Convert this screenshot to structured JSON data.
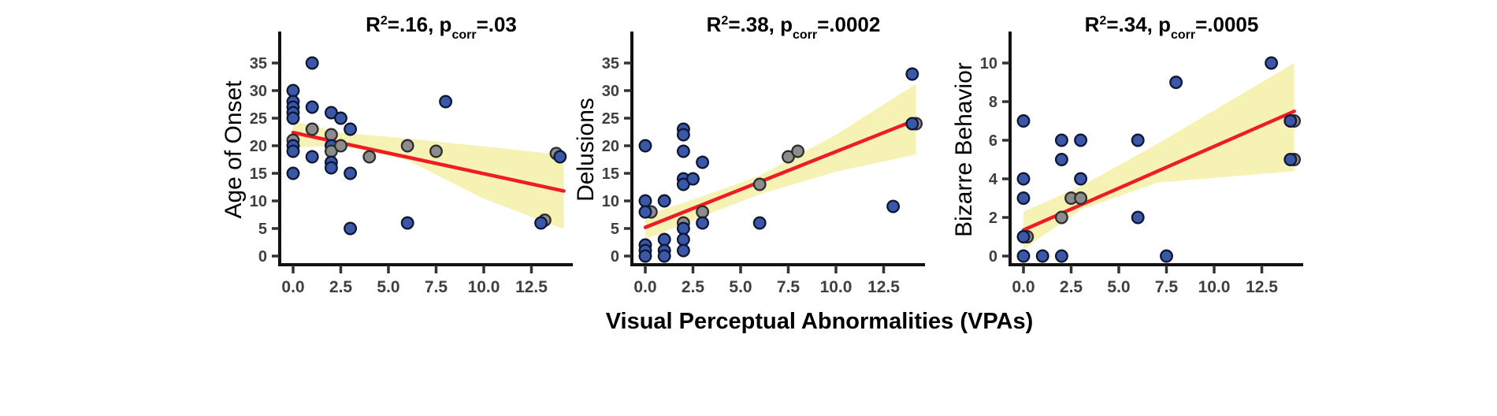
{
  "figure": {
    "x_axis_title": "Visual Perceptual Abnormalities (VPAs)",
    "colors": {
      "point_blue": "#3b57a8",
      "point_blue_stroke": "#0e1733",
      "point_gray": "#8c8c8c",
      "point_gray_stroke": "#2e2e2e",
      "regression_red": "#ee1c25",
      "ci_band_yellow": "#f6f2b4",
      "axis": "#111111",
      "tick_label": "#3f3f3f",
      "title_text": "#000000"
    }
  },
  "chart_data": [
    {
      "type": "scatter",
      "title": {
        "base": "R",
        "sup": "2",
        "mid": "=.16, p",
        "sub": "corr",
        "tail": "=.03"
      },
      "title_plain": "R2=.16, pcorr=.03",
      "ylabel": "Age of Onset",
      "xlabel_shared": "Visual Perceptual Abnormalities (VPAs)",
      "ylim": [
        0,
        35
      ],
      "yticks": [
        0,
        5,
        10,
        15,
        20,
        25,
        30,
        35
      ],
      "xlim": [
        0,
        14.5
      ],
      "xticks": [
        0,
        2.5,
        5,
        7.5,
        10,
        12.5
      ],
      "xtick_labels": [
        "0.0",
        "2.5",
        "5.0",
        "7.5",
        "10.0",
        "12.5"
      ],
      "legend": "none",
      "grid": false,
      "regression_line": {
        "x": [
          0,
          14.2
        ],
        "y": [
          22.4,
          11.8
        ]
      },
      "ci_band": {
        "top": [
          [
            0,
            24.4
          ],
          [
            2.5,
            22.4
          ],
          [
            6,
            21.3
          ],
          [
            10,
            19.9
          ],
          [
            14.2,
            18.3
          ]
        ],
        "bottom": [
          [
            0,
            19.7
          ],
          [
            2.5,
            20.0
          ],
          [
            6,
            17.4
          ],
          [
            10,
            10.4
          ],
          [
            14.2,
            4.9
          ]
        ]
      },
      "points": [
        [
          0,
          30,
          "b"
        ],
        [
          0,
          28,
          "b"
        ],
        [
          0,
          27,
          "b"
        ],
        [
          0,
          26,
          "b"
        ],
        [
          0,
          25,
          "b"
        ],
        [
          0,
          21,
          "g"
        ],
        [
          0,
          20,
          "b"
        ],
        [
          0,
          19,
          "b"
        ],
        [
          0,
          15,
          "b"
        ],
        [
          1,
          35,
          "b"
        ],
        [
          1,
          27,
          "b"
        ],
        [
          1,
          23,
          "g"
        ],
        [
          1,
          18,
          "b"
        ],
        [
          2,
          26,
          "b"
        ],
        [
          2,
          22,
          "g"
        ],
        [
          2,
          20,
          "b"
        ],
        [
          2,
          19,
          "g"
        ],
        [
          2,
          17,
          "b"
        ],
        [
          2,
          16,
          "b"
        ],
        [
          2.5,
          25,
          "b"
        ],
        [
          2.5,
          20,
          "g"
        ],
        [
          3,
          23,
          "b"
        ],
        [
          3,
          15,
          "b"
        ],
        [
          3,
          5,
          "b"
        ],
        [
          4,
          18,
          "g"
        ],
        [
          6,
          20,
          "g"
        ],
        [
          6,
          6,
          "b"
        ],
        [
          7.5,
          19,
          "g"
        ],
        [
          8,
          28,
          "b"
        ],
        [
          13.2,
          6.5,
          "g"
        ],
        [
          13,
          6,
          "b"
        ],
        [
          13.8,
          18.6,
          "g"
        ],
        [
          14,
          18,
          "b"
        ]
      ]
    },
    {
      "type": "scatter",
      "title": {
        "base": "R",
        "sup": "2",
        "mid": "=.38, p",
        "sub": "corr",
        "tail": "=.0002"
      },
      "title_plain": "R2=.38, pcorr=.0002",
      "ylabel": "Delusions",
      "xlabel_shared": "Visual Perceptual Abnormalities (VPAs)",
      "ylim": [
        0,
        35
      ],
      "yticks": [
        0,
        5,
        10,
        15,
        20,
        25,
        30,
        35
      ],
      "xlim": [
        0,
        14.5
      ],
      "xticks": [
        0,
        2.5,
        5,
        7.5,
        10,
        12.5
      ],
      "xtick_labels": [
        "0.0",
        "2.5",
        "5.0",
        "7.5",
        "10.0",
        "12.5"
      ],
      "legend": "none",
      "grid": false,
      "regression_line": {
        "x": [
          0,
          14.2
        ],
        "y": [
          5.2,
          24.7
        ]
      },
      "ci_band": {
        "top": [
          [
            0,
            7.4
          ],
          [
            3,
            10.8
          ],
          [
            6,
            14.6
          ],
          [
            10,
            22.0
          ],
          [
            14.2,
            31.2
          ]
        ],
        "bottom": [
          [
            0,
            3.0
          ],
          [
            3,
            7.2
          ],
          [
            6,
            11.2
          ],
          [
            10,
            15.3
          ],
          [
            14.2,
            18.4
          ]
        ]
      },
      "points": [
        [
          0,
          20,
          "b"
        ],
        [
          0,
          10,
          "b"
        ],
        [
          0.3,
          8,
          "g"
        ],
        [
          0,
          8,
          "b"
        ],
        [
          0,
          2,
          "b"
        ],
        [
          0,
          1,
          "b"
        ],
        [
          0,
          0,
          "b"
        ],
        [
          1,
          10,
          "b"
        ],
        [
          1,
          3,
          "b"
        ],
        [
          1,
          1,
          "b"
        ],
        [
          1,
          0,
          "b"
        ],
        [
          2,
          23,
          "b"
        ],
        [
          2,
          22,
          "b"
        ],
        [
          2,
          19,
          "b"
        ],
        [
          2,
          14,
          "b"
        ],
        [
          2,
          13,
          "b"
        ],
        [
          2,
          6,
          "g"
        ],
        [
          2,
          5,
          "b"
        ],
        [
          2,
          3,
          "b"
        ],
        [
          2,
          1,
          "b"
        ],
        [
          2.5,
          14,
          "b"
        ],
        [
          3,
          17,
          "b"
        ],
        [
          3,
          8,
          "g"
        ],
        [
          3,
          6,
          "b"
        ],
        [
          6,
          13,
          "g"
        ],
        [
          6,
          6,
          "b"
        ],
        [
          7.5,
          18,
          "g"
        ],
        [
          8,
          19,
          "g"
        ],
        [
          13,
          9,
          "b"
        ],
        [
          14,
          33,
          "b"
        ],
        [
          14.2,
          24,
          "g"
        ],
        [
          14,
          24,
          "b"
        ]
      ]
    },
    {
      "type": "scatter",
      "title": {
        "base": "R",
        "sup": "2",
        "mid": "=.34, p",
        "sub": "corr",
        "tail": "=.0005"
      },
      "title_plain": "R2=.34, pcorr=.0005",
      "ylabel": "Bizarre Behavior",
      "xlabel_shared": "Visual Perceptual Abnormalities (VPAs)",
      "ylim": [
        0,
        10
      ],
      "yticks": [
        0,
        2,
        4,
        6,
        8,
        10
      ],
      "xlim": [
        0,
        14.5
      ],
      "xticks": [
        0,
        2.5,
        5,
        7.5,
        10,
        12.5
      ],
      "xtick_labels": [
        "0.0",
        "2.5",
        "5.0",
        "7.5",
        "10.0",
        "12.5"
      ],
      "legend": "none",
      "grid": false,
      "regression_line": {
        "x": [
          0,
          14.2
        ],
        "y": [
          1.35,
          7.5
        ]
      },
      "ci_band": {
        "top": [
          [
            0,
            2.3
          ],
          [
            3,
            3.6
          ],
          [
            7,
            5.8
          ],
          [
            14.2,
            10.0
          ]
        ],
        "bottom": [
          [
            0,
            0.35
          ],
          [
            3,
            2.4
          ],
          [
            7,
            3.8
          ],
          [
            14.2,
            4.4
          ]
        ]
      },
      "points": [
        [
          0,
          7,
          "b"
        ],
        [
          0,
          4,
          "b"
        ],
        [
          0,
          3,
          "b"
        ],
        [
          0.2,
          1,
          "g"
        ],
        [
          0,
          1,
          "b"
        ],
        [
          0,
          0,
          "b"
        ],
        [
          1,
          0,
          "b"
        ],
        [
          2,
          6,
          "b"
        ],
        [
          2,
          5,
          "b"
        ],
        [
          2,
          2,
          "g"
        ],
        [
          2,
          0,
          "b"
        ],
        [
          2.5,
          3,
          "g"
        ],
        [
          3,
          3,
          "g"
        ],
        [
          3,
          6,
          "b"
        ],
        [
          3,
          4,
          "b"
        ],
        [
          6,
          6,
          "b"
        ],
        [
          6,
          2,
          "b"
        ],
        [
          7.5,
          0,
          "b"
        ],
        [
          8,
          9,
          "b"
        ],
        [
          13,
          10,
          "b"
        ],
        [
          14.2,
          7,
          "g"
        ],
        [
          14,
          7,
          "b"
        ],
        [
          14.2,
          5,
          "g"
        ],
        [
          14,
          5,
          "b"
        ]
      ]
    }
  ]
}
